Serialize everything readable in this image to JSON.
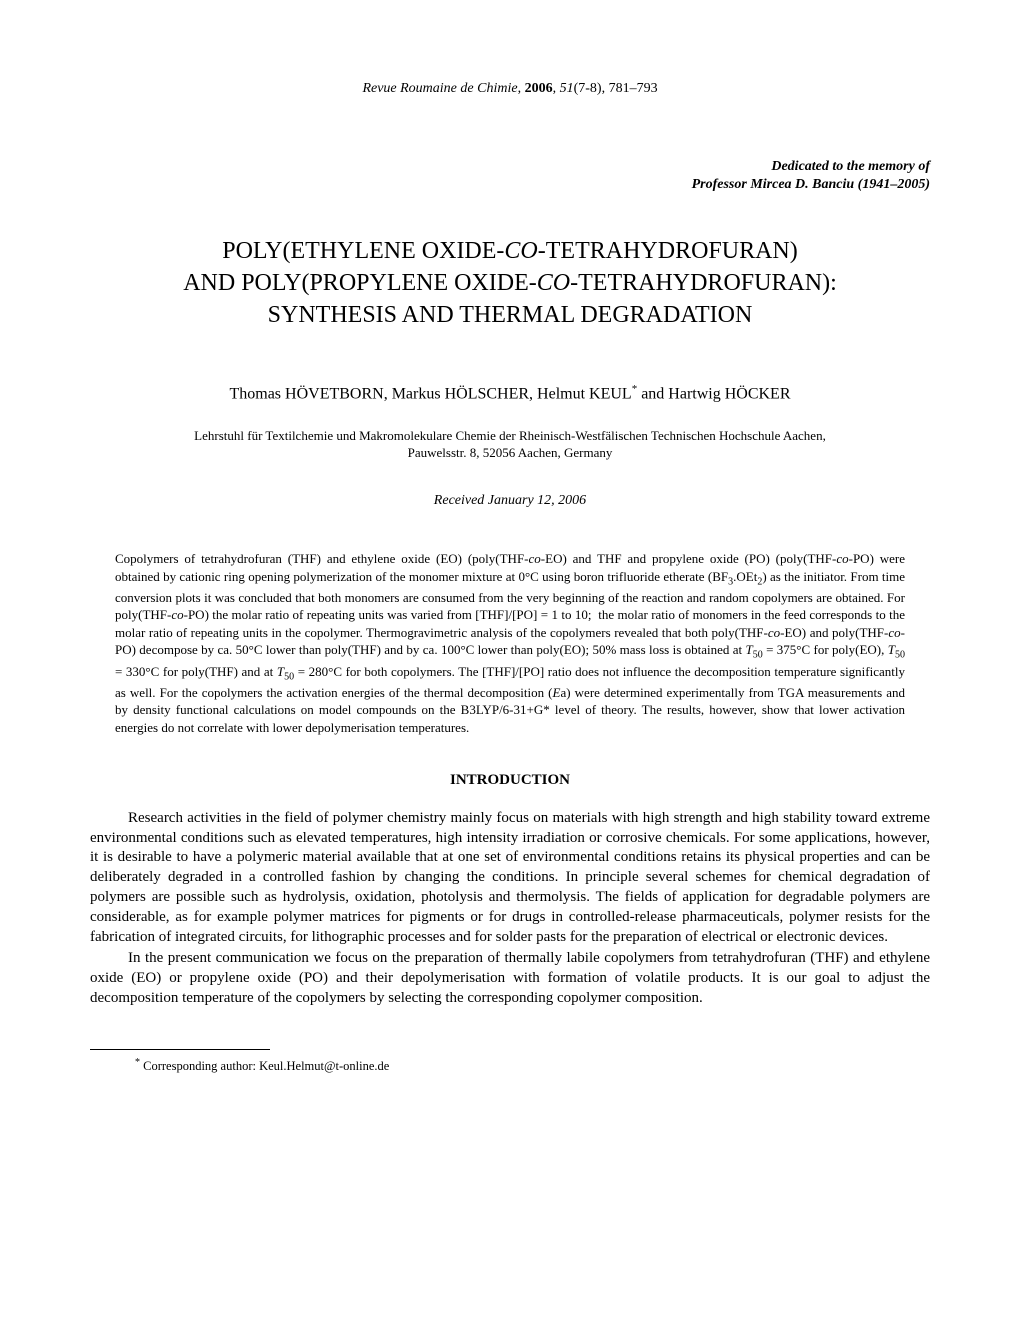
{
  "citation": {
    "journal": "Revue Roumaine de Chimie",
    "year": "2006",
    "volume": "51",
    "issue": "(7-8)",
    "pages": "781–793"
  },
  "dedication": {
    "line1": "Dedicated to the memory of",
    "line2": "Professor Mircea D. Banciu (1941–2005)"
  },
  "title": {
    "part1": "POLY(ETHYLENE OXIDE-",
    "co1": "CO",
    "part2": "-TETRAHYDROFURAN)",
    "part3": "AND POLY(PROPYLENE OXIDE-",
    "co2": "CO",
    "part4": "-TETRAHYDROFURAN):",
    "part5": "SYNTHESIS AND THERMAL DEGRADATION"
  },
  "authors": {
    "a1": "Thomas HÖVETBORN, Markus HÖLSCHER, Helmut KEUL",
    "ast": "*",
    "a2": " and Hartwig HÖCKER"
  },
  "affiliation": {
    "line1": "Lehrstuhl für Textilchemie und Makromolekulare Chemie der Rheinisch-Westfälischen Technischen Hochschule Aachen,",
    "line2": "Pauwelsstr. 8, 52056 Aachen, Germany"
  },
  "received": "Received January 12, 2006",
  "abstract": "Copolymers of tetrahydrofuran (THF) and ethylene oxide (EO) (poly(THF-co-EO) and THF and propylene oxide (PO) (poly(THF-co-PO) were obtained by cationic ring opening polymerization of the monomer mixture at 0°C using boron trifluoride etherate (BF3·OEt2) as the initiator. From time conversion plots it was concluded that both monomers are consumed from the very beginning of the reaction and random copolymers are obtained. For poly(THF-co-PO) the molar ratio of repeating units was varied from [THF]/[PO] = 1 to 10;  the molar ratio of monomers in the feed corresponds to the molar ratio of repeating units in the copolymer. Thermogravimetric analysis of the copolymers revealed that both poly(THF-co-EO) and poly(THF-co-PO) decompose by ca. 50°C lower than poly(THF) and by ca. 100°C lower than poly(EO); 50% mass loss is obtained at T50 = 375°C for poly(EO), T50 = 330°C for poly(THF) and at T50 = 280°C for both copolymers. The [THF]/[PO] ratio does not influence the decomposition temperature significantly as well. For the copolymers the activation energies of the thermal decomposition (Ea) were determined experimentally from TGA measurements and by density functional calculations on model compounds on the B3LYP/6-31+G* level of theory. The results, however, show that lower activation energies do not correlate with lower depolymerisation temperatures.",
  "section_heading": "INTRODUCTION",
  "paragraphs": {
    "p1": "Research activities in the field of polymer chemistry mainly focus on materials with high strength and high stability toward extreme environmental conditions such as elevated temperatures, high intensity irradiation or corrosive chemicals. For some applications, however, it is desirable to have a polymeric material available that at one set of environmental conditions retains its physical properties and can be deliberately degraded in a controlled fashion by changing the conditions. In principle several schemes for chemical degradation of polymers are possible such as hydrolysis, oxidation, photolysis and thermolysis. The fields of application for degradable polymers are considerable, as for example polymer matrices for pigments or for drugs in controlled-release pharmaceuticals, polymer resists for the fabrication of integrated circuits, for lithographic processes and for solder pasts for the preparation of electrical or electronic devices.",
    "p2": "In the present communication we focus on the preparation of thermally labile copolymers from tetrahydrofuran (THF) and ethylene oxide (EO) or propylene oxide (PO) and their depolymerisation with formation of volatile products. It is our goal to adjust the decomposition temperature of the copolymers by selecting the corresponding copolymer composition."
  },
  "footnote": {
    "ast": "*",
    "text": " Corresponding author: Keul.Helmut@t-online.de"
  },
  "style": {
    "page_bg": "#ffffff",
    "text_color": "#000000",
    "font_family": "Times New Roman",
    "title_fontsize_pt": 18,
    "body_fontsize_pt": 11,
    "abstract_fontsize_pt": 10,
    "footnote_fontsize_pt": 9
  }
}
